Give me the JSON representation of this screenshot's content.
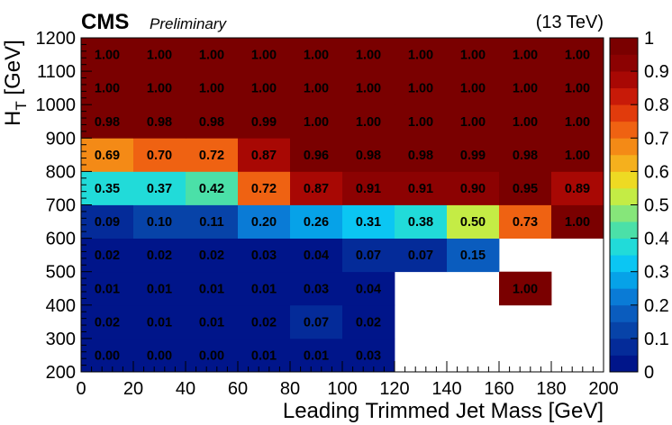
{
  "header": {
    "experiment": "CMS",
    "status": "Preliminary",
    "energy": "(13 TeV)"
  },
  "chart_data": {
    "type": "heatmap",
    "title": "",
    "xlabel": "Leading Trimmed Jet Mass [GeV]",
    "ylabel": "H",
    "ylabel_subscript": "T",
    "ylabel_suffix": " [GeV]",
    "xlim": [
      0,
      200
    ],
    "ylim": [
      200,
      1200
    ],
    "zlim": [
      0,
      1
    ],
    "x_bin_edges": [
      0,
      20,
      40,
      60,
      80,
      100,
      120,
      140,
      160,
      180,
      200
    ],
    "y_bin_edges": [
      200,
      300,
      400,
      500,
      600,
      700,
      800,
      900,
      1000,
      1100,
      1200
    ],
    "x_ticks": [
      "0",
      "20",
      "40",
      "60",
      "80",
      "100",
      "120",
      "140",
      "160",
      "180",
      "200"
    ],
    "y_ticks": [
      "200",
      "300",
      "400",
      "500",
      "600",
      "700",
      "800",
      "900",
      "1000",
      "1100",
      "1200"
    ],
    "colorbar_ticks": [
      "0",
      "0.1",
      "0.2",
      "0.3",
      "0.4",
      "0.5",
      "0.6",
      "0.7",
      "0.8",
      "0.9",
      "1"
    ],
    "values": [
      [
        0.0,
        0.0,
        0.0,
        0.01,
        0.01,
        0.03,
        null,
        null,
        null,
        null
      ],
      [
        0.02,
        0.01,
        0.01,
        0.02,
        0.07,
        0.02,
        null,
        null,
        null,
        null
      ],
      [
        0.01,
        0.01,
        0.01,
        0.01,
        0.03,
        0.04,
        null,
        null,
        1.0,
        null
      ],
      [
        0.02,
        0.02,
        0.02,
        0.03,
        0.04,
        0.07,
        0.07,
        0.15,
        null,
        null
      ],
      [
        0.09,
        0.1,
        0.11,
        0.2,
        0.26,
        0.31,
        0.38,
        0.5,
        0.73,
        1.0
      ],
      [
        0.35,
        0.37,
        0.42,
        0.72,
        0.87,
        0.91,
        0.91,
        0.9,
        0.95,
        0.89
      ],
      [
        0.69,
        0.7,
        0.72,
        0.87,
        0.96,
        0.98,
        0.98,
        0.99,
        0.98,
        1.0
      ],
      [
        0.98,
        0.98,
        0.98,
        0.99,
        1.0,
        1.0,
        1.0,
        1.0,
        1.0,
        1.0
      ],
      [
        1.0,
        1.0,
        1.0,
        1.0,
        1.0,
        1.0,
        1.0,
        1.0,
        1.0,
        1.0
      ],
      [
        1.0,
        1.0,
        1.0,
        1.0,
        1.0,
        1.0,
        1.0,
        1.0,
        1.0,
        1.0
      ]
    ],
    "colorbar_colors": [
      "#00158a",
      "#042b99",
      "#0743a8",
      "#0a5cbe",
      "#0a7bd6",
      "#06a2e8",
      "#0bc6f3",
      "#21dbd9",
      "#4be0a8",
      "#86e67a",
      "#c4ec45",
      "#eeda23",
      "#f5b01d",
      "#f48a16",
      "#ef6212",
      "#e13b0c",
      "#c81a08",
      "#a80804",
      "#8c0202",
      "#7a0000"
    ],
    "empty_color": "#ffffff",
    "grid": false
  }
}
